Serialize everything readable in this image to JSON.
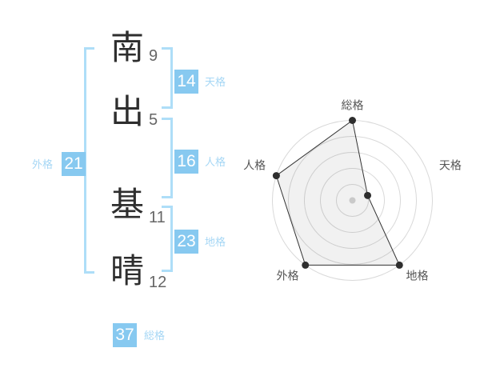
{
  "page": {
    "background": "#ffffff"
  },
  "name_panel": {
    "chars": [
      {
        "char": "南",
        "strokes": "9"
      },
      {
        "char": "出",
        "strokes": "5"
      },
      {
        "char": "基",
        "strokes": "11"
      },
      {
        "char": "晴",
        "strokes": "12"
      }
    ],
    "categories": {
      "tenkaku": {
        "label": "天格",
        "value": "14"
      },
      "jinkaku": {
        "label": "人格",
        "value": "16"
      },
      "chikaku": {
        "label": "地格",
        "value": "23"
      },
      "gaikaku": {
        "label": "外格",
        "value": "21"
      },
      "soukaku": {
        "label": "総格",
        "value": "37"
      }
    },
    "colors": {
      "badge_bg": "#87c9f0",
      "badge_text": "#ffffff",
      "label_text": "#a6d7f5",
      "bracket": "#aedef8",
      "kanji": "#2e2e2e",
      "stroke_numbers": "#666666"
    }
  },
  "chart_data": {
    "type": "radar",
    "title": "",
    "axes": [
      "総格",
      "天格",
      "地格",
      "外格",
      "人格"
    ],
    "values": [
      5,
      1,
      5,
      5,
      5
    ],
    "max": 5,
    "rings": 5,
    "category_scores_note": "radius fraction per axis, outer ring = 5",
    "grid_color": "#d9d9d9",
    "line_color": "#333333",
    "point_color": "#2e2e2e",
    "fill_color": "rgba(0,0,0,0.055)",
    "center_dot_color": "#c9c9c9",
    "label_color": "#555555",
    "legend": "none",
    "grid": "circular"
  }
}
